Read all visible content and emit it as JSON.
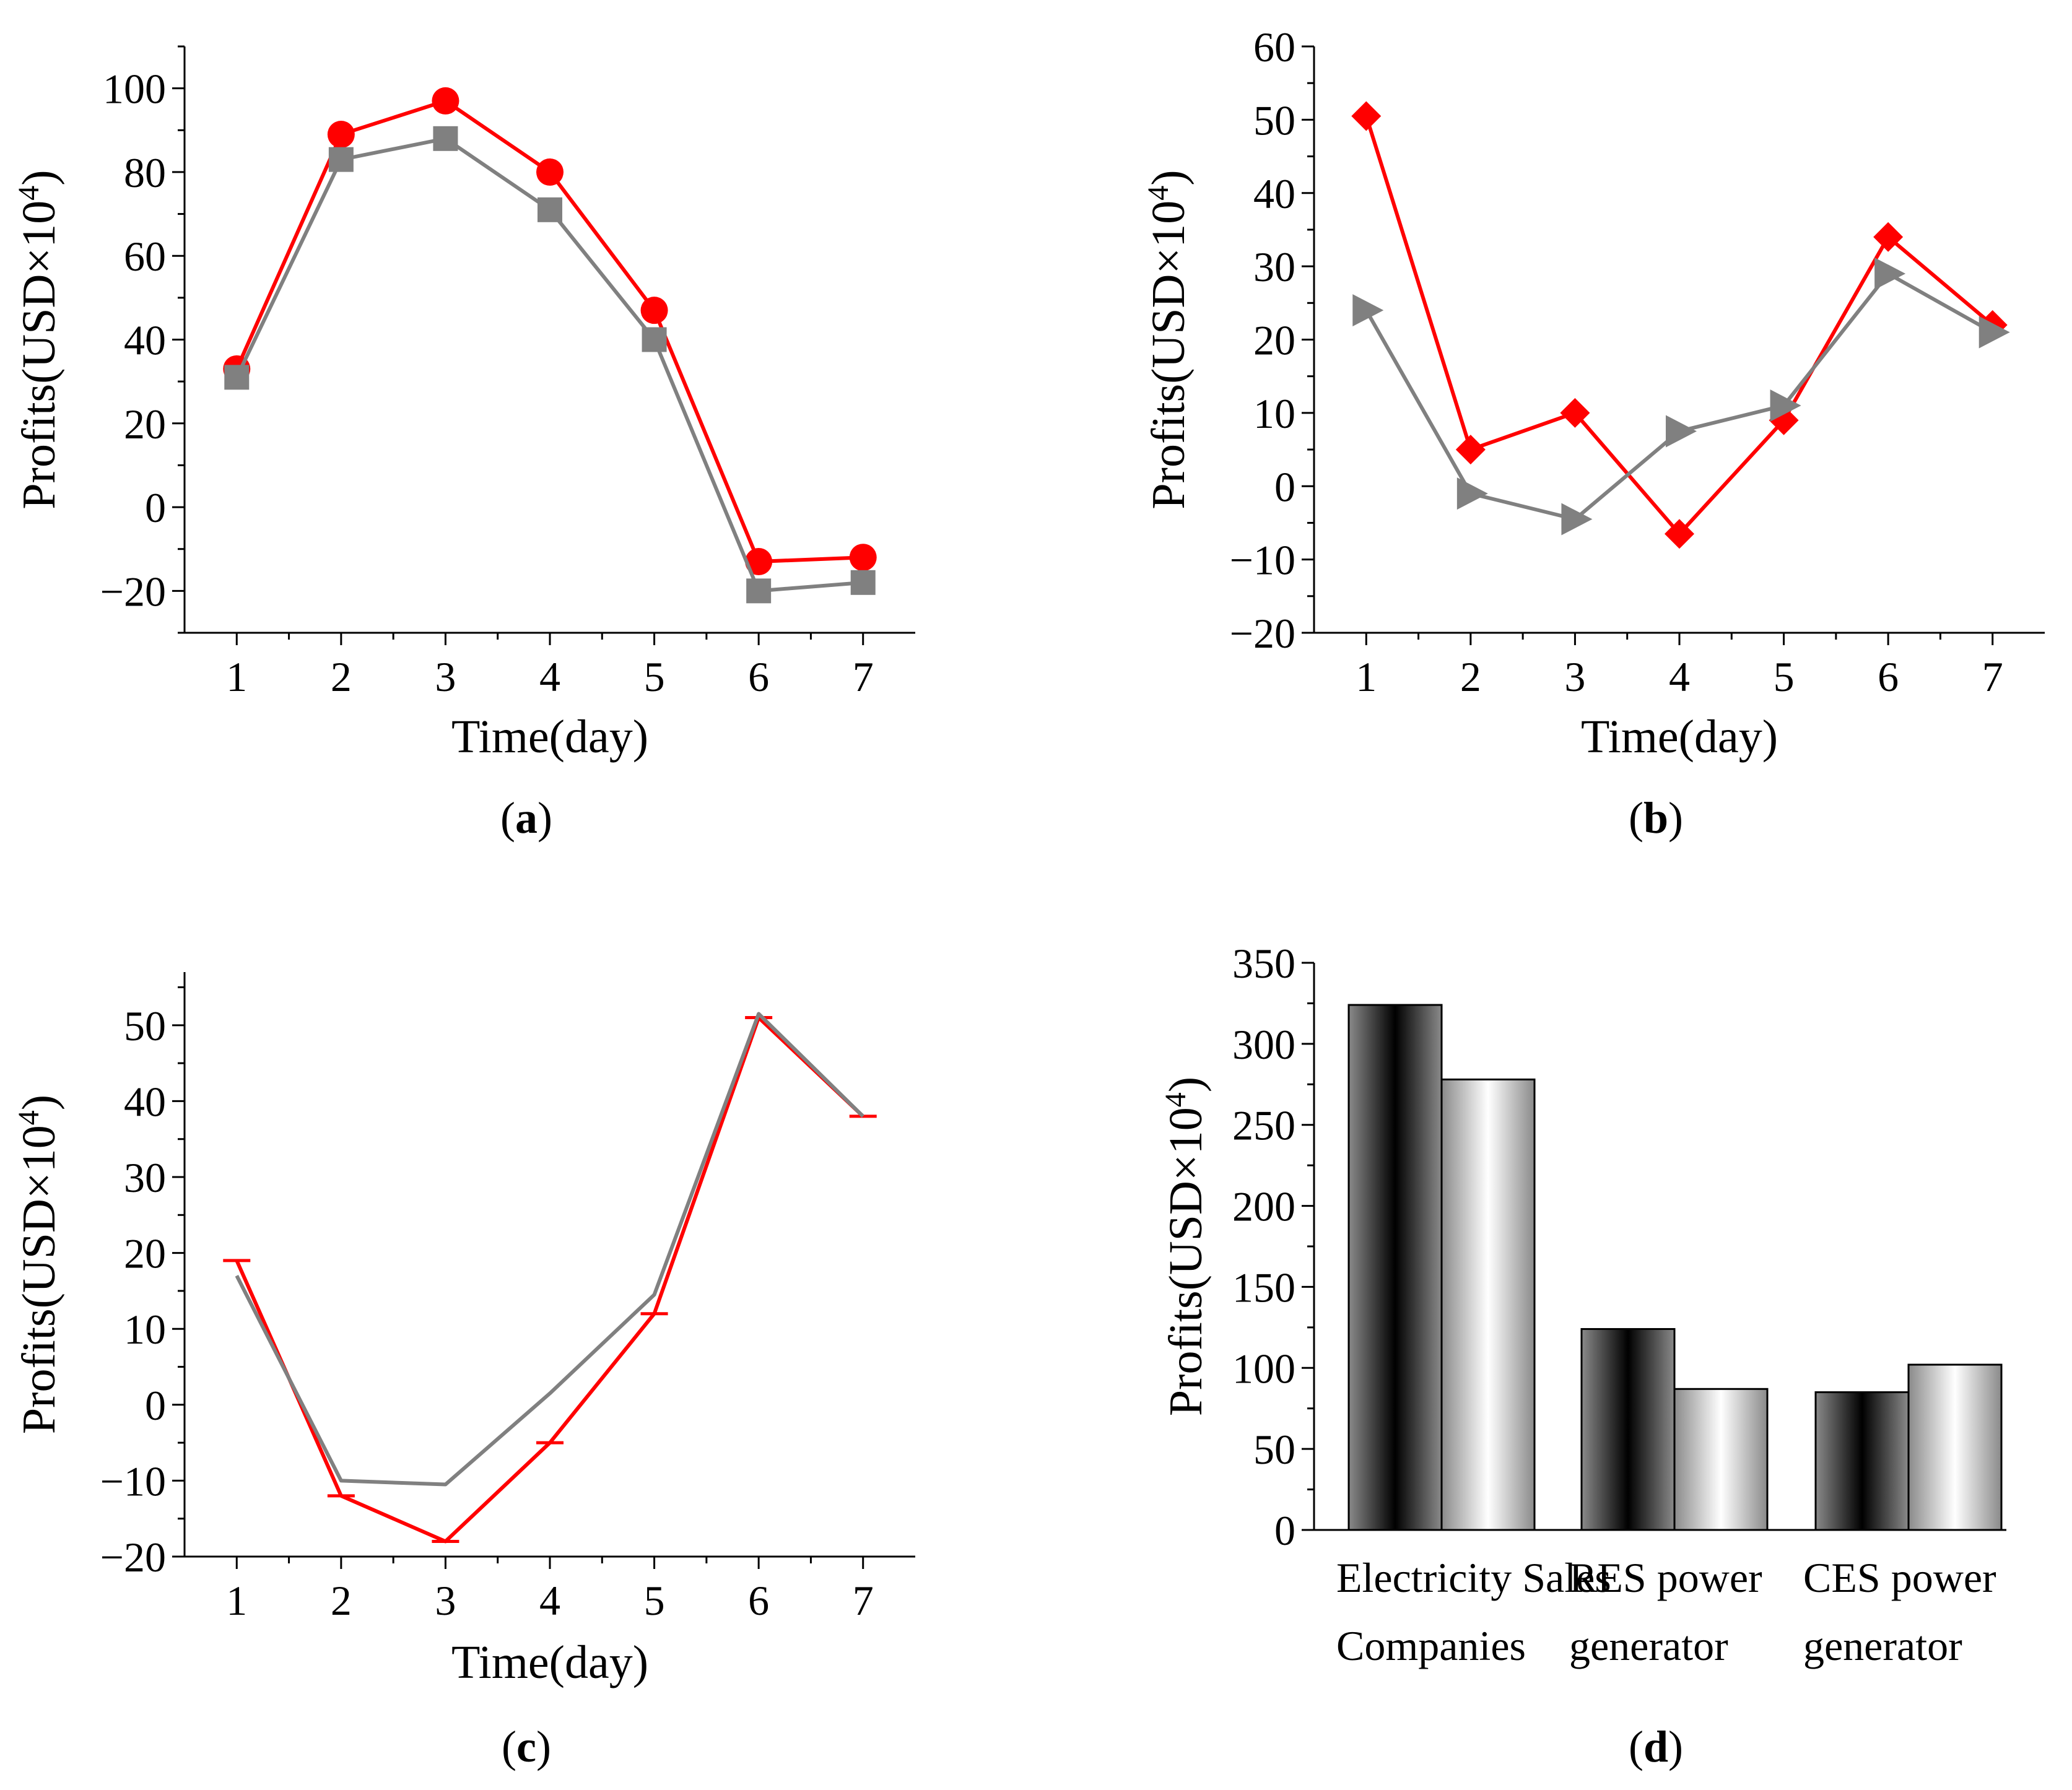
{
  "colors": {
    "red": "#ff0000",
    "gray": "#808080"
  },
  "chart_data": [
    {
      "id": "a",
      "type": "line",
      "panel_label": "a",
      "xlabel": "Time(day)",
      "ylabel_base": "Profits(USD×10",
      "ylabel_sup": "4",
      "ylabel_end": ")",
      "x": [
        1,
        2,
        3,
        4,
        5,
        6,
        7
      ],
      "xlim": [
        0.5,
        7.5
      ],
      "ylim": [
        -30,
        110
      ],
      "yticks": [
        -20,
        0,
        20,
        40,
        60,
        80,
        100
      ],
      "series": [
        {
          "color": "red",
          "marker": "circle",
          "values": [
            33,
            89,
            97,
            80,
            47,
            -13,
            -12
          ]
        },
        {
          "color": "gray",
          "marker": "square",
          "values": [
            31,
            83,
            88,
            71,
            40,
            -20,
            -18
          ]
        }
      ]
    },
    {
      "id": "b",
      "type": "line",
      "panel_label": "b",
      "xlabel": "Time(day)",
      "ylabel_base": "Profits(USD×10",
      "ylabel_sup": "4",
      "ylabel_end": ")",
      "x": [
        1,
        2,
        3,
        4,
        5,
        6,
        7
      ],
      "xlim": [
        0.5,
        7.5
      ],
      "ylim": [
        -20,
        60
      ],
      "yticks": [
        -20,
        -10,
        0,
        10,
        20,
        30,
        40,
        50,
        60
      ],
      "series": [
        {
          "color": "red",
          "marker": "diamond",
          "values": [
            50.5,
            5,
            10,
            -6.5,
            9,
            34,
            22
          ]
        },
        {
          "color": "gray",
          "marker": "triangle-right",
          "values": [
            24,
            -1,
            -4.5,
            7.5,
            11,
            29,
            21
          ]
        }
      ]
    },
    {
      "id": "c",
      "type": "line",
      "panel_label": "c",
      "xlabel": "Time(day)",
      "ylabel_base": "Profits(USD×10",
      "ylabel_sup": "4",
      "ylabel_end": ")",
      "x": [
        1,
        2,
        3,
        4,
        5,
        6,
        7
      ],
      "xlim": [
        0.5,
        7.5
      ],
      "ylim": [
        -20,
        57
      ],
      "yticks": [
        -20,
        -10,
        0,
        10,
        20,
        30,
        40,
        50
      ],
      "series": [
        {
          "color": "red",
          "marker": "hbar",
          "values": [
            19,
            -12,
            -18,
            -5,
            12,
            51,
            38
          ]
        },
        {
          "color": "gray",
          "marker": "none",
          "values": [
            17,
            -10,
            -10.5,
            1.5,
            14.5,
            51.5,
            38
          ]
        }
      ]
    },
    {
      "id": "d",
      "type": "bar",
      "panel_label": "d",
      "ylabel_base": "Profits(USD×10",
      "ylabel_sup": "4",
      "ylabel_end": ")",
      "categories": [
        [
          "Electricity Sales",
          "Companies"
        ],
        [
          "RES power",
          "generator"
        ],
        [
          "CES power",
          "generator"
        ]
      ],
      "ylim": [
        0,
        350
      ],
      "yticks": [
        0,
        50,
        100,
        150,
        200,
        250,
        300,
        350
      ],
      "series": [
        {
          "fill": "dark-gradient",
          "values": [
            324,
            124,
            85
          ]
        },
        {
          "fill": "light-gradient",
          "values": [
            278,
            87,
            102
          ]
        }
      ]
    }
  ]
}
